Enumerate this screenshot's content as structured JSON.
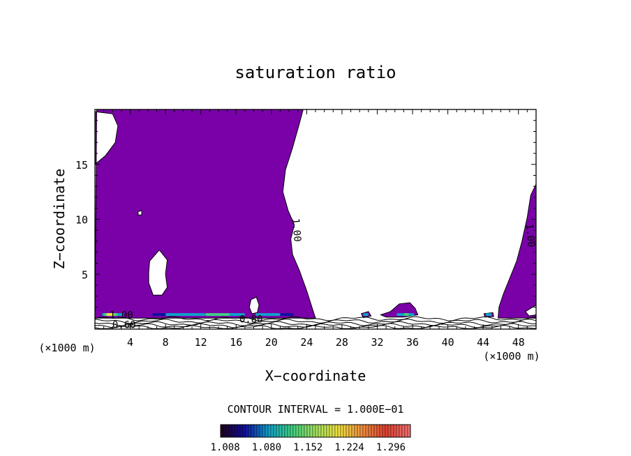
{
  "chart_data": {
    "type": "contour",
    "title": "saturation ratio",
    "xlabel": "X−coordinate",
    "ylabel": "Z−coordinate",
    "x_unit_left": "(×1000 m)",
    "x_unit_right": "(×1000 m)",
    "xlim": [
      0,
      50
    ],
    "ylim": [
      0,
      20
    ],
    "xticks": [
      4,
      8,
      12,
      16,
      20,
      24,
      28,
      32,
      36,
      40,
      44,
      48
    ],
    "yticks": [
      5,
      10,
      15
    ],
    "fill_threshold": 1.0,
    "fill_color": "#7a00a8",
    "contour_labels": [
      {
        "text": "1.00",
        "x": 22.5,
        "y": 9.0
      },
      {
        "text": "1.00",
        "x": 49.0,
        "y": 8.5
      },
      {
        "text": "0.80",
        "x": 17.7,
        "y": 0.6
      },
      {
        "text": "0.60",
        "x": 3.3,
        "y": 0.1
      },
      {
        "text": "1.00",
        "x": 3.0,
        "y": 1.0
      }
    ],
    "contour_interval_text": "CONTOUR INTERVAL = 1.000E−01",
    "colorbar_labels": [
      "1.008",
      "1.080",
      "1.152",
      "1.224",
      "1.296"
    ],
    "colorbar_range": [
      1.0,
      1.33
    ],
    "colorbar_colors": [
      "#200020",
      "#1010a0",
      "#10a0c8",
      "#40d080",
      "#a0e060",
      "#f0e040",
      "#f09040",
      "#e04030",
      "#f07070"
    ]
  }
}
